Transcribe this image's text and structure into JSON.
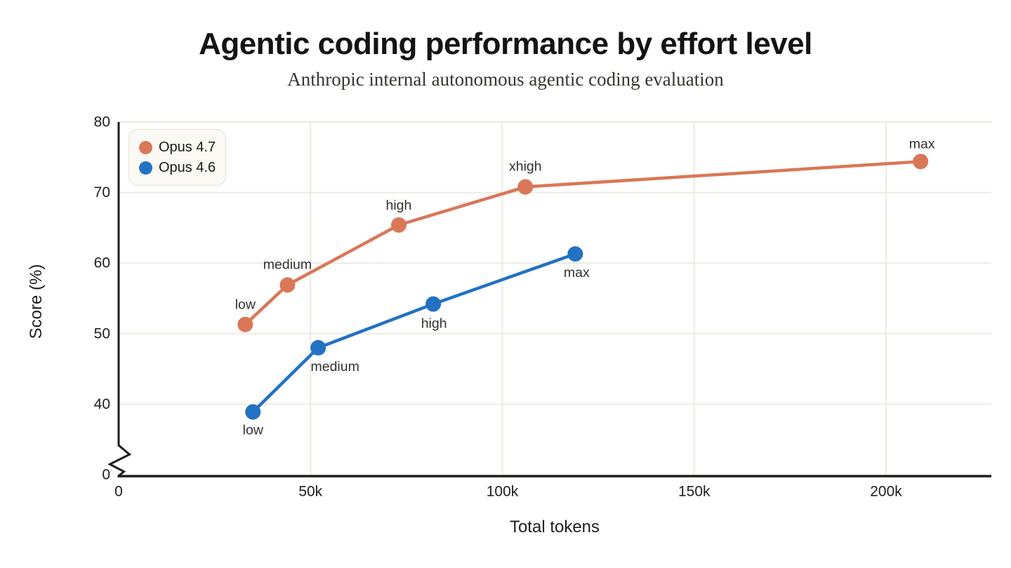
{
  "title": "Agentic coding performance by effort level",
  "subtitle": "Anthropic internal autonomous agentic coding evaluation",
  "chart_data": {
    "type": "line",
    "title": "Agentic coding performance by effort level",
    "subtitle": "Anthropic internal autonomous agentic coding evaluation",
    "xlabel": "Total tokens",
    "ylabel": "Score (%)",
    "grid": true,
    "x_ticks": [
      {
        "tokens_k": 0,
        "label": "0"
      },
      {
        "tokens_k": 50,
        "label": "50k"
      },
      {
        "tokens_k": 100,
        "label": "100k"
      },
      {
        "tokens_k": 150,
        "label": "150k"
      },
      {
        "tokens_k": 200,
        "label": "200k"
      }
    ],
    "y_ticks": [
      {
        "value": 80,
        "label": "80"
      },
      {
        "value": 70,
        "label": "70"
      },
      {
        "value": 60,
        "label": "60"
      },
      {
        "value": 50,
        "label": "50"
      },
      {
        "value": 40,
        "label": "40"
      }
    ],
    "y_axis_break": true,
    "y_origin_label": "0",
    "ylim": [
      40,
      80
    ],
    "xlim_tokens_k": [
      0,
      227
    ],
    "legend": {
      "position": "top-left"
    },
    "series": [
      {
        "name": "Opus 4.7",
        "color": "#d97757",
        "points": [
          {
            "label": "low",
            "tokens_k": 33,
            "score": 51.3,
            "label_dx": 0,
            "label_dy": -28
          },
          {
            "label": "medium",
            "tokens_k": 44,
            "score": 56.9,
            "label_dx": 0,
            "label_dy": -29
          },
          {
            "label": "high",
            "tokens_k": 73,
            "score": 65.4,
            "label_dx": 0,
            "label_dy": -28
          },
          {
            "label": "xhigh",
            "tokens_k": 106,
            "score": 70.8,
            "label_dx": 0,
            "label_dy": -29
          },
          {
            "label": "max",
            "tokens_k": 209,
            "score": 74.4,
            "label_dx": 2,
            "label_dy": -25
          }
        ]
      },
      {
        "name": "Opus 4.6",
        "color": "#2271c3",
        "points": [
          {
            "label": "low",
            "tokens_k": 35,
            "score": 38.9,
            "label_dx": 0,
            "label_dy": 26
          },
          {
            "label": "medium",
            "tokens_k": 52,
            "score": 48.0,
            "label_dx": 24,
            "label_dy": 27
          },
          {
            "label": "high",
            "tokens_k": 82,
            "score": 54.2,
            "label_dx": 1,
            "label_dy": 28
          },
          {
            "label": "max",
            "tokens_k": 119,
            "score": 61.3,
            "label_dx": 2,
            "label_dy": 27
          }
        ]
      }
    ]
  },
  "colors": {
    "axis": "#1f1e1c",
    "grid": "#edeae1",
    "tick_text": "#1f1e1c",
    "point_label_text": "#333230",
    "legend_bg": "#faf9f3",
    "legend_border": "#e5e0d3",
    "background": "#ffffff"
  }
}
